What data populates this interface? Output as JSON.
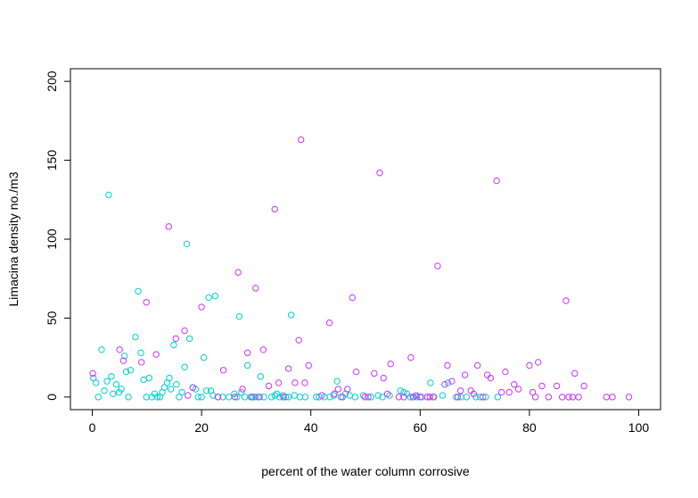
{
  "chart_data": {
    "type": "scatter",
    "title": "",
    "xlabel": "percent of the water column corrosive",
    "ylabel": "Limacina density no./m3",
    "xlim": [
      -4,
      104
    ],
    "ylim": [
      -8,
      208
    ],
    "xticks": [
      0,
      20,
      40,
      60,
      80,
      100
    ],
    "yticks": [
      0,
      50,
      100,
      150,
      200
    ],
    "marker": "open circle",
    "grid": false,
    "legend": "none",
    "series": [
      {
        "color": "#00CED1",
        "points": [
          [
            0.2,
            12
          ],
          [
            0.7,
            9
          ],
          [
            1.1,
            0
          ],
          [
            1.7,
            30
          ],
          [
            2.2,
            4
          ],
          [
            2.7,
            10
          ],
          [
            3.0,
            128
          ],
          [
            3.5,
            13
          ],
          [
            3.8,
            2
          ],
          [
            4.4,
            8
          ],
          [
            4.9,
            3
          ],
          [
            5.3,
            5
          ],
          [
            5.9,
            26
          ],
          [
            6.2,
            16
          ],
          [
            6.6,
            0
          ],
          [
            7.0,
            17
          ],
          [
            7.9,
            38
          ],
          [
            8.4,
            67
          ],
          [
            8.9,
            28
          ],
          [
            9.4,
            11
          ],
          [
            9.9,
            0
          ],
          [
            10.4,
            12
          ],
          [
            10.9,
            0
          ],
          [
            11.4,
            2
          ],
          [
            11.9,
            0
          ],
          [
            12.4,
            0
          ],
          [
            12.8,
            3
          ],
          [
            13.2,
            6
          ],
          [
            13.7,
            9
          ],
          [
            14.1,
            12
          ],
          [
            14.4,
            5
          ],
          [
            14.9,
            33
          ],
          [
            15.4,
            8
          ],
          [
            15.9,
            0
          ],
          [
            16.4,
            3
          ],
          [
            16.9,
            19
          ],
          [
            17.3,
            97
          ],
          [
            17.8,
            37
          ],
          [
            18.4,
            6
          ],
          [
            18.9,
            5
          ],
          [
            19.4,
            0
          ],
          [
            20.0,
            0
          ],
          [
            20.4,
            25
          ],
          [
            20.9,
            4
          ],
          [
            21.3,
            63
          ],
          [
            21.7,
            4
          ],
          [
            22.1,
            1
          ],
          [
            22.5,
            64
          ],
          [
            23.0,
            0
          ],
          [
            23.9,
            0
          ],
          [
            25.0,
            0
          ],
          [
            26.0,
            2
          ],
          [
            26.5,
            0
          ],
          [
            26.9,
            51
          ],
          [
            27.3,
            3
          ],
          [
            27.9,
            0
          ],
          [
            28.4,
            20
          ],
          [
            29.0,
            0
          ],
          [
            29.5,
            0
          ],
          [
            29.9,
            0
          ],
          [
            30.4,
            0
          ],
          [
            30.8,
            13
          ],
          [
            31.4,
            0
          ],
          [
            32.8,
            0
          ],
          [
            33.4,
            1
          ],
          [
            33.8,
            2
          ],
          [
            34.3,
            0
          ],
          [
            34.9,
            1
          ],
          [
            35.4,
            0
          ],
          [
            35.9,
            0
          ],
          [
            36.4,
            52
          ],
          [
            37.0,
            1
          ],
          [
            38.0,
            0
          ],
          [
            39.0,
            0
          ],
          [
            41.0,
            0
          ],
          [
            41.5,
            0
          ],
          [
            42.5,
            0
          ],
          [
            43.5,
            0
          ],
          [
            44.2,
            1
          ],
          [
            44.8,
            10
          ],
          [
            45.5,
            0
          ],
          [
            46.3,
            2
          ],
          [
            47.1,
            1
          ],
          [
            48.1,
            0
          ],
          [
            49.6,
            1
          ],
          [
            51.0,
            0
          ],
          [
            52.3,
            1
          ],
          [
            53.1,
            0
          ],
          [
            54.4,
            1
          ],
          [
            56.4,
            4
          ],
          [
            57.0,
            3
          ],
          [
            57.6,
            2
          ],
          [
            58.2,
            0
          ],
          [
            58.8,
            0
          ],
          [
            59.4,
            0
          ],
          [
            60.3,
            0
          ],
          [
            61.3,
            0
          ],
          [
            61.9,
            9
          ],
          [
            62.4,
            0
          ],
          [
            64.1,
            1
          ],
          [
            65.1,
            9
          ],
          [
            66.6,
            0
          ],
          [
            67.5,
            0
          ],
          [
            68.5,
            0
          ],
          [
            70.2,
            0
          ],
          [
            71.0,
            0
          ],
          [
            72.0,
            0
          ],
          [
            74.2,
            0
          ]
        ]
      },
      {
        "color": "#CC33FF",
        "points": [
          [
            0.1,
            15
          ],
          [
            5.0,
            30
          ],
          [
            5.7,
            23
          ],
          [
            9.0,
            22
          ],
          [
            9.9,
            60
          ],
          [
            11.7,
            27
          ],
          [
            14.0,
            108
          ],
          [
            15.3,
            37
          ],
          [
            16.9,
            42
          ],
          [
            17.5,
            1
          ],
          [
            18.4,
            6
          ],
          [
            20.0,
            57
          ],
          [
            23.0,
            0
          ],
          [
            24.0,
            17
          ],
          [
            26.1,
            0
          ],
          [
            26.7,
            79
          ],
          [
            27.5,
            5
          ],
          [
            28.4,
            28
          ],
          [
            29.2,
            0
          ],
          [
            29.9,
            69
          ],
          [
            30.6,
            0
          ],
          [
            31.3,
            30
          ],
          [
            32.3,
            7
          ],
          [
            33.4,
            119
          ],
          [
            34.1,
            9
          ],
          [
            35.0,
            0
          ],
          [
            35.9,
            18
          ],
          [
            37.1,
            9
          ],
          [
            37.8,
            36
          ],
          [
            38.2,
            163
          ],
          [
            38.9,
            9
          ],
          [
            39.6,
            20
          ],
          [
            42.0,
            1
          ],
          [
            43.4,
            47
          ],
          [
            44.3,
            2
          ],
          [
            45.0,
            5
          ],
          [
            45.8,
            0
          ],
          [
            46.7,
            5
          ],
          [
            47.6,
            63
          ],
          [
            48.3,
            16
          ],
          [
            49.9,
            0
          ],
          [
            50.5,
            0
          ],
          [
            51.6,
            15
          ],
          [
            52.6,
            142
          ],
          [
            53.3,
            12
          ],
          [
            54.0,
            2
          ],
          [
            54.6,
            21
          ],
          [
            56.1,
            0
          ],
          [
            57.0,
            0
          ],
          [
            58.3,
            25
          ],
          [
            58.7,
            0
          ],
          [
            59.3,
            1
          ],
          [
            60.0,
            0
          ],
          [
            61.3,
            0
          ],
          [
            61.8,
            0
          ],
          [
            62.5,
            0
          ],
          [
            63.2,
            83
          ],
          [
            64.5,
            8
          ],
          [
            65.0,
            20
          ],
          [
            65.8,
            10
          ],
          [
            66.9,
            0
          ],
          [
            67.4,
            4
          ],
          [
            68.2,
            14
          ],
          [
            69.3,
            4
          ],
          [
            69.8,
            2
          ],
          [
            70.5,
            20
          ],
          [
            71.5,
            0
          ],
          [
            72.3,
            14
          ],
          [
            72.9,
            12
          ],
          [
            74.0,
            137
          ],
          [
            74.9,
            3
          ],
          [
            75.6,
            16
          ],
          [
            76.3,
            3
          ],
          [
            77.2,
            8
          ],
          [
            78.0,
            5
          ],
          [
            80.0,
            20
          ],
          [
            80.6,
            3
          ],
          [
            81.1,
            0
          ],
          [
            81.6,
            22
          ],
          [
            82.3,
            7
          ],
          [
            83.5,
            0
          ],
          [
            85.0,
            7
          ],
          [
            86.0,
            0
          ],
          [
            86.7,
            61
          ],
          [
            87.2,
            0
          ],
          [
            87.9,
            0
          ],
          [
            88.3,
            15
          ],
          [
            89.0,
            0
          ],
          [
            90.0,
            7
          ],
          [
            94.1,
            0
          ],
          [
            95.2,
            0
          ],
          [
            98.2,
            0
          ]
        ]
      }
    ]
  }
}
